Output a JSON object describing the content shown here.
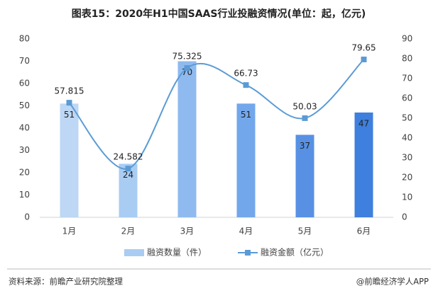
{
  "chart_data": {
    "type": "bar-line",
    "title": "图表15：2020年H1中国SAAS行业投融资情况(单位：起，亿元)",
    "categories": [
      "1月",
      "2月",
      "3月",
      "4月",
      "5月",
      "6月"
    ],
    "series": [
      {
        "name": "融资数量（件）",
        "type": "bar",
        "colors": [
          "#bdd7f5",
          "#a9ccf3",
          "#8fbaf0",
          "#73a7ec",
          "#5891e4",
          "#3f7fdd"
        ],
        "color": "#a9ccf3",
        "values": [
          51,
          24,
          70,
          51,
          37,
          47
        ]
      },
      {
        "name": "融资金额（亿元）",
        "type": "line",
        "axis": "y2",
        "color": "#5b9bd5",
        "values": [
          57.815,
          24.582,
          75.325,
          66.73,
          50.03,
          79.65
        ]
      }
    ],
    "ylim": [
      0,
      80
    ],
    "yticks": [
      0,
      10,
      20,
      30,
      40,
      50,
      60,
      70,
      80
    ],
    "y2lim": [
      0,
      90
    ],
    "y2ticks": [
      0,
      10,
      20,
      30,
      40,
      50,
      60,
      70,
      80,
      90
    ],
    "legend": "bottom",
    "source": "资料来源：前瞻产业研究院整理",
    "credit": "@前瞻经济学人APP"
  }
}
